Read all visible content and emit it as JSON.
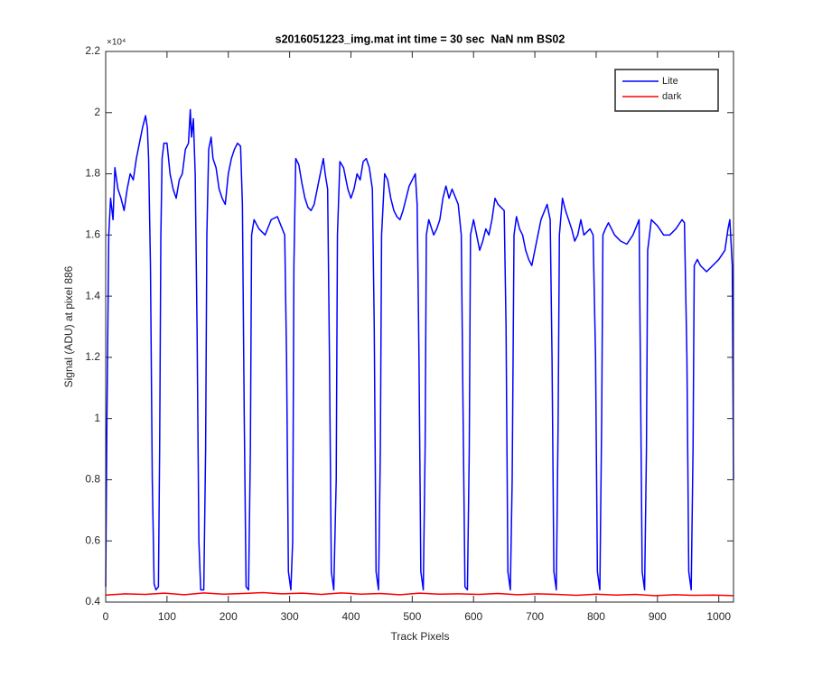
{
  "chart_data": {
    "type": "line",
    "title": "s2016051223_img.mat int time = 30 sec  NaN nm BS02",
    "x_label": "Track Pixels",
    "y_label": "Signal (ADU) at pixel 886",
    "y_exponent_label": "×10⁴",
    "xlim": [
      0,
      1024
    ],
    "xticks": [
      0,
      100,
      200,
      300,
      400,
      500,
      600,
      700,
      800,
      900,
      1000
    ],
    "ylim": [
      0.4,
      2.2
    ],
    "yticks": [
      0.4,
      0.6,
      0.8,
      1,
      1.2,
      1.4,
      1.6,
      1.8,
      2,
      2.2
    ],
    "legend": "upper right",
    "series": [
      {
        "name": "Lite",
        "color": "#0000ff",
        "x": [
          0,
          2,
          5,
          8,
          12,
          15,
          20,
          25,
          30,
          35,
          40,
          45,
          50,
          55,
          60,
          65,
          68,
          70,
          73,
          76,
          79,
          82,
          86,
          88,
          90,
          92,
          95,
          100,
          105,
          110,
          115,
          120,
          125,
          130,
          135,
          138,
          140,
          143,
          146,
          149,
          152,
          155,
          160,
          163,
          165,
          168,
          172,
          175,
          180,
          185,
          190,
          195,
          200,
          205,
          210,
          215,
          220,
          223,
          226,
          229,
          233,
          236,
          238,
          242,
          250,
          260,
          270,
          280,
          288,
          292,
          295,
          298,
          302,
          305,
          307,
          310,
          315,
          320,
          325,
          330,
          335,
          340,
          345,
          350,
          355,
          358,
          362,
          365,
          368,
          372,
          376,
          378,
          382,
          388,
          395,
          400,
          405,
          410,
          415,
          420,
          425,
          430,
          435,
          438,
          441,
          445,
          448,
          450,
          455,
          460,
          465,
          470,
          475,
          480,
          485,
          490,
          495,
          500,
          505,
          508,
          511,
          514,
          518,
          521,
          523,
          527,
          535,
          540,
          545,
          550,
          555,
          560,
          565,
          575,
          580,
          583,
          586,
          590,
          593,
          595,
          600,
          605,
          610,
          615,
          620,
          625,
          630,
          635,
          640,
          650,
          653,
          656,
          660,
          663,
          666,
          670,
          675,
          680,
          685,
          690,
          695,
          700,
          705,
          710,
          720,
          725,
          728,
          731,
          735,
          738,
          740,
          745,
          750,
          760,
          765,
          770,
          775,
          780,
          790,
          795,
          799,
          802,
          806,
          809,
          811,
          815,
          820,
          830,
          840,
          850,
          860,
          870,
          872,
          875,
          879,
          882,
          884,
          890,
          900,
          910,
          920,
          930,
          940,
          944,
          948,
          951,
          955,
          958,
          960,
          965,
          970,
          980,
          990,
          1000,
          1010,
          1015,
          1018,
          1022,
          1024
        ],
        "values": [
          0.45,
          1.0,
          1.6,
          1.72,
          1.65,
          1.82,
          1.75,
          1.72,
          1.68,
          1.75,
          1.8,
          1.78,
          1.85,
          1.9,
          1.95,
          1.99,
          1.95,
          1.85,
          1.5,
          0.8,
          0.46,
          0.44,
          0.45,
          0.9,
          1.6,
          1.85,
          1.9,
          1.9,
          1.8,
          1.75,
          1.72,
          1.78,
          1.8,
          1.88,
          1.9,
          2.01,
          1.92,
          1.98,
          1.8,
          1.3,
          0.6,
          0.44,
          0.44,
          0.9,
          1.6,
          1.88,
          1.92,
          1.85,
          1.82,
          1.75,
          1.72,
          1.7,
          1.8,
          1.85,
          1.88,
          1.9,
          1.89,
          1.7,
          1.0,
          0.45,
          0.44,
          0.9,
          1.6,
          1.65,
          1.62,
          1.6,
          1.65,
          1.66,
          1.62,
          1.6,
          1.2,
          0.5,
          0.44,
          0.6,
          1.5,
          1.85,
          1.83,
          1.77,
          1.72,
          1.69,
          1.68,
          1.7,
          1.75,
          1.8,
          1.85,
          1.8,
          1.75,
          1.2,
          0.5,
          0.44,
          0.8,
          1.6,
          1.84,
          1.82,
          1.75,
          1.72,
          1.75,
          1.8,
          1.78,
          1.84,
          1.85,
          1.82,
          1.75,
          1.3,
          0.5,
          0.44,
          0.9,
          1.6,
          1.8,
          1.78,
          1.72,
          1.68,
          1.66,
          1.65,
          1.68,
          1.72,
          1.76,
          1.78,
          1.8,
          1.7,
          1.2,
          0.5,
          0.44,
          0.9,
          1.6,
          1.65,
          1.6,
          1.62,
          1.65,
          1.72,
          1.76,
          1.72,
          1.75,
          1.7,
          1.6,
          1.0,
          0.45,
          0.44,
          0.9,
          1.6,
          1.65,
          1.6,
          1.55,
          1.58,
          1.62,
          1.6,
          1.65,
          1.72,
          1.7,
          1.68,
          1.3,
          0.5,
          0.44,
          0.8,
          1.6,
          1.66,
          1.62,
          1.6,
          1.55,
          1.52,
          1.5,
          1.55,
          1.6,
          1.65,
          1.7,
          1.65,
          1.2,
          0.5,
          0.44,
          1.0,
          1.6,
          1.72,
          1.68,
          1.62,
          1.58,
          1.6,
          1.65,
          1.6,
          1.62,
          1.6,
          1.2,
          0.5,
          0.44,
          1.0,
          1.6,
          1.62,
          1.64,
          1.6,
          1.58,
          1.57,
          1.6,
          1.65,
          1.2,
          0.5,
          0.44,
          0.9,
          1.55,
          1.65,
          1.63,
          1.6,
          1.6,
          1.62,
          1.65,
          1.64,
          1.2,
          0.5,
          0.44,
          0.9,
          1.5,
          1.52,
          1.5,
          1.48,
          1.5,
          1.52,
          1.55,
          1.62,
          1.65,
          1.5,
          0.8
        ]
      },
      {
        "name": "dark",
        "color": "#ff0000",
        "x": [
          0,
          32,
          64,
          96,
          128,
          160,
          192,
          224,
          256,
          288,
          320,
          352,
          384,
          416,
          448,
          480,
          512,
          544,
          576,
          608,
          640,
          672,
          704,
          736,
          768,
          800,
          832,
          864,
          896,
          928,
          960,
          992,
          1024
        ],
        "values": [
          0.423,
          0.427,
          0.425,
          0.429,
          0.424,
          0.43,
          0.426,
          0.428,
          0.431,
          0.427,
          0.429,
          0.425,
          0.43,
          0.426,
          0.428,
          0.424,
          0.429,
          0.426,
          0.427,
          0.425,
          0.428,
          0.424,
          0.427,
          0.425,
          0.422,
          0.426,
          0.423,
          0.425,
          0.421,
          0.424,
          0.422,
          0.423,
          0.421
        ]
      }
    ]
  }
}
